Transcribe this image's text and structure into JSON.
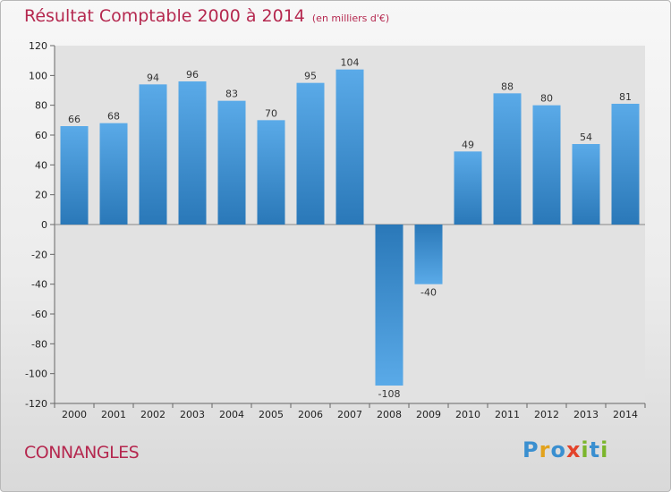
{
  "title": "Résultat Comptable 2000 à 2014",
  "subtitle": "(en milliers d'€)",
  "place": "CONNANGLES",
  "brand": {
    "letters": [
      {
        "char": "P",
        "color": "#3a8fd0"
      },
      {
        "char": "r",
        "color": "#e2a21c"
      },
      {
        "char": "o",
        "color": "#3a8fd0"
      },
      {
        "char": "x",
        "color": "#e3432b"
      },
      {
        "char": "i",
        "color": "#7bb52c"
      },
      {
        "char": "t",
        "color": "#3a8fd0"
      },
      {
        "char": "i",
        "color": "#7bb52c"
      }
    ]
  },
  "chart_data": {
    "type": "bar",
    "categories": [
      "2000",
      "2001",
      "2002",
      "2003",
      "2004",
      "2005",
      "2006",
      "2007",
      "2008",
      "2009",
      "2010",
      "2011",
      "2012",
      "2013",
      "2014"
    ],
    "values": [
      66,
      68,
      94,
      96,
      83,
      70,
      95,
      104,
      -108,
      -40,
      49,
      88,
      80,
      54,
      81
    ],
    "data_labels": [
      "66",
      "68",
      "94",
      "96",
      "83",
      "70",
      "95",
      "104",
      "-108",
      "-40",
      "49",
      "88",
      "80",
      "54",
      "81"
    ],
    "yticks": [
      120,
      100,
      80,
      60,
      40,
      20,
      0,
      -20,
      -40,
      -60,
      -80,
      -100,
      -120
    ],
    "ytick_labels": [
      "120",
      "100",
      "80",
      "60",
      "40",
      "20",
      "0",
      "-20",
      "-40",
      "-60",
      "-80",
      "-100",
      "-120"
    ],
    "ylim": [
      -120,
      120
    ],
    "grid": false,
    "bar_color_light": "#5aaae8",
    "bar_color_dark": "#2a78b8"
  }
}
